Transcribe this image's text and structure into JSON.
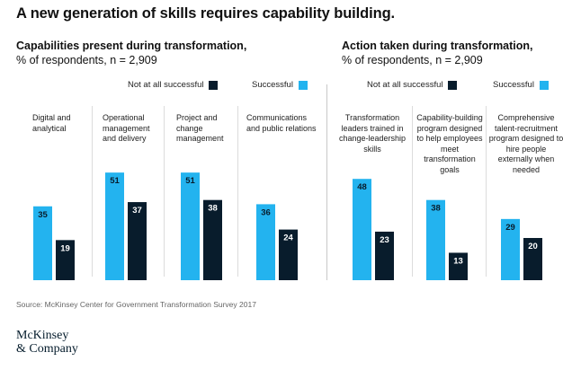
{
  "title": "A new generation of skills requires capability building.",
  "legend": {
    "not_successful": "Not at all successful",
    "successful": "Successful",
    "colors": {
      "successful": "#23b3ef",
      "not_successful": "#081c2c"
    }
  },
  "source": "Source: McKinsey Center for Government Transformation Survey 2017",
  "logo": {
    "line1": "McKinsey",
    "line2": "& Company"
  },
  "chart_data": [
    {
      "type": "bar",
      "title": "Capabilities present during transformation,",
      "subtitle": "% of respondents, n = 2,909",
      "categories": [
        "Digital and analytical",
        "Operational management and delivery",
        "Project and change management",
        "Communications and public relations"
      ],
      "series": [
        {
          "name": "Successful",
          "values": [
            35,
            51,
            51,
            36
          ]
        },
        {
          "name": "Not at all successful",
          "values": [
            19,
            37,
            38,
            24
          ]
        }
      ],
      "ylim": [
        0,
        60
      ],
      "grid": false
    },
    {
      "type": "bar",
      "title": "Action taken during transformation,",
      "subtitle": "% of respondents, n = 2,909",
      "categories": [
        "Transformation leaders trained in change-leadership skills",
        "Capability-building program designed to help employees meet transformation goals",
        "Comprehensive talent-recruitment program designed to hire people externally when needed"
      ],
      "series": [
        {
          "name": "Successful",
          "values": [
            48,
            38,
            29
          ]
        },
        {
          "name": "Not at all successful",
          "values": [
            23,
            13,
            20
          ]
        }
      ],
      "ylim": [
        0,
        60
      ],
      "grid": false
    }
  ]
}
